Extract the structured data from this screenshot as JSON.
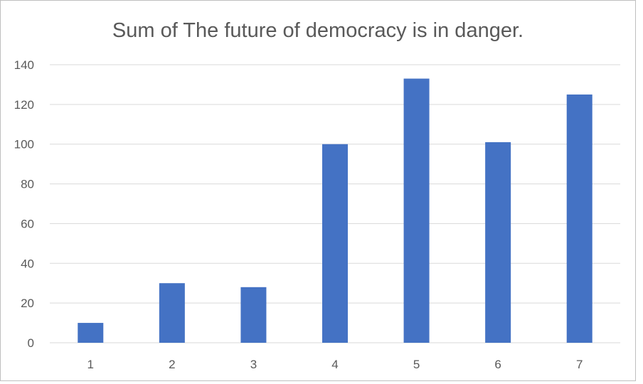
{
  "chart_data": {
    "type": "bar",
    "title": "Sum of The future of democracy is in danger.",
    "categories": [
      "1",
      "2",
      "3",
      "4",
      "5",
      "6",
      "7"
    ],
    "values": [
      10,
      30,
      28,
      100,
      133,
      101,
      125
    ],
    "ylim": [
      0,
      140
    ],
    "yticks": [
      0,
      20,
      40,
      60,
      80,
      100,
      120,
      140
    ],
    "ytick_labels": [
      "0",
      "20",
      "40",
      "60",
      "80",
      "100",
      "120",
      "140"
    ],
    "grid": true,
    "legend": "none",
    "bar_color": "#4472C4",
    "grid_color": "#d9d9d9",
    "text_color": "#595959"
  }
}
